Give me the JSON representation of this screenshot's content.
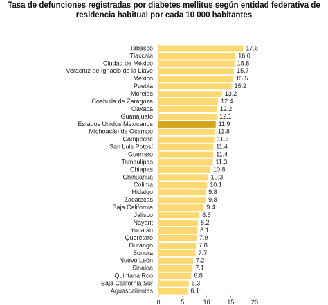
{
  "chart_data": {
    "type": "hbar",
    "title": "Tasa de defunciones registradas por diabetes mellitus según entidad federativa de residencia habitual por cada 10 000 habitantes",
    "categories": [
      "Tabasco",
      "Tlaxcala",
      "Ciudad de México",
      "Veracruz de Ignacio de la Llave",
      "México",
      "Puebla",
      "Morelos",
      "Coahuila de Zaragoza",
      "Oaxaca",
      "Guanajuato",
      "Estados Unidos Mexicanos",
      "Michoacán de Ocampo",
      "Campeche",
      "San Luis Potosí",
      "Guerrero",
      "Tamaulipas",
      "Chiapas",
      "Chihuahua",
      "Colima",
      "Hidalgo",
      "Zacatecas",
      "Baja California",
      "Jalisco",
      "Nayarit",
      "Yucatán",
      "Querétaro",
      "Durango",
      "Sonora",
      "Nuevo León",
      "Sinaloa",
      "Quintana Roo",
      "Baja California Sur",
      "Aguascalientes"
    ],
    "values": [
      17.6,
      16.0,
      15.8,
      15.7,
      15.5,
      15.2,
      13.2,
      12.4,
      12.2,
      12.1,
      11.9,
      11.8,
      11.6,
      11.4,
      11.4,
      11.3,
      10.8,
      10.3,
      10.1,
      9.8,
      9.8,
      9.4,
      8.5,
      8.2,
      8.1,
      7.9,
      7.8,
      7.7,
      7.2,
      7.1,
      6.8,
      6.3,
      6.1
    ],
    "value_labels": [
      "17.6",
      "16.0",
      "15.8",
      "15.7",
      "15.5",
      "15.2",
      "13.2",
      "12.4",
      "12.2",
      "12.1",
      "11.9",
      "11.8",
      "11.6",
      "11.4",
      "11.4",
      "11.3",
      "10.8",
      "10.3",
      "10.1",
      "9.8",
      "9.8",
      "9.4",
      "8.5",
      "8.2",
      "8.1",
      "7.9",
      "7.8",
      "7.7",
      "7.2",
      "7.1",
      "6.8",
      "6.3",
      "6.1"
    ],
    "colors": [
      "#fbd872",
      "#fbd872",
      "#fbd872",
      "#fbd872",
      "#fbd872",
      "#fbd872",
      "#fbd872",
      "#fbd872",
      "#fbd872",
      "#fbd872",
      "#d4a41a",
      "#fbd872",
      "#fbd872",
      "#fbd872",
      "#fbd872",
      "#fbd872",
      "#fbd872",
      "#fbd872",
      "#fbd872",
      "#fbd872",
      "#fbd872",
      "#fbd872",
      "#fbd872",
      "#fbd872",
      "#fbd872",
      "#fbd872",
      "#fbd872",
      "#fbd872",
      "#fbd872",
      "#fbd872",
      "#fbd872",
      "#fbd872",
      "#fbd872"
    ],
    "xlim": [
      0,
      20
    ],
    "xticks": [
      0,
      5,
      10,
      15,
      20
    ]
  }
}
